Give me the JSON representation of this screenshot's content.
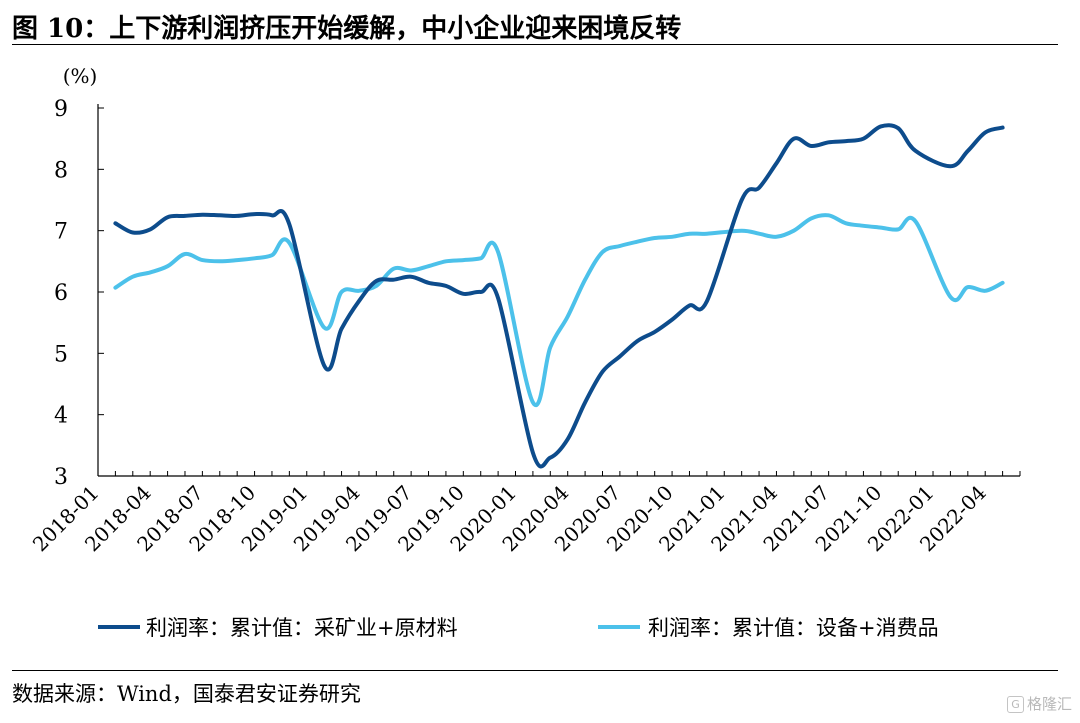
{
  "page": {
    "title": "图 10：上下游利润挤压开始缓解，中小企业迎来困境反转",
    "source": "数据来源：Wind，国泰君安证券研究",
    "watermark": "格隆汇"
  },
  "chart_data": {
    "type": "line",
    "title": "",
    "ylabel": "(%)",
    "xlabel": "",
    "ylim": [
      3,
      9
    ],
    "yticks": [
      3,
      4,
      5,
      6,
      7,
      8,
      9
    ],
    "xticks": [
      "2018-01",
      "2018-04",
      "2018-07",
      "2018-10",
      "2019-01",
      "2019-04",
      "2019-07",
      "2019-10",
      "2020-01",
      "2020-04",
      "2020-07",
      "2020-10",
      "2021-01",
      "2021-04",
      "2021-07",
      "2021-10",
      "2022-01",
      "2022-04"
    ],
    "x": [
      "2018-02",
      "2018-03",
      "2018-04",
      "2018-05",
      "2018-06",
      "2018-07",
      "2018-08",
      "2018-09",
      "2018-10",
      "2018-11",
      "2018-12",
      "2019-02",
      "2019-03",
      "2019-04",
      "2019-05",
      "2019-06",
      "2019-07",
      "2019-08",
      "2019-09",
      "2019-10",
      "2019-11",
      "2019-12",
      "2020-02",
      "2020-03",
      "2020-04",
      "2020-05",
      "2020-06",
      "2020-07",
      "2020-08",
      "2020-09",
      "2020-10",
      "2020-11",
      "2020-12",
      "2021-02",
      "2021-03",
      "2021-04",
      "2021-05",
      "2021-06",
      "2021-07",
      "2021-08",
      "2021-09",
      "2021-10",
      "2021-11",
      "2021-12",
      "2022-02",
      "2022-03",
      "2022-04",
      "2022-05"
    ],
    "grid": false,
    "legend_position": "bottom",
    "series": [
      {
        "name": "利润率：累计值：采矿业+原材料",
        "color": "#0d4c8c",
        "values": [
          7.12,
          6.97,
          7.02,
          7.22,
          7.24,
          7.26,
          7.25,
          7.24,
          7.27,
          7.25,
          7.1,
          4.8,
          5.4,
          5.85,
          6.18,
          6.2,
          6.25,
          6.15,
          6.1,
          5.97,
          6.0,
          5.9,
          3.38,
          3.3,
          3.6,
          4.2,
          4.7,
          4.95,
          5.2,
          5.35,
          5.55,
          5.78,
          5.85,
          7.5,
          7.7,
          8.1,
          8.5,
          8.38,
          8.44,
          8.46,
          8.5,
          8.7,
          8.67,
          8.3,
          8.05,
          8.3,
          8.6,
          8.68
        ]
      },
      {
        "name": "利润率：累计值：设备+消费品",
        "color": "#4cc1ea",
        "values": [
          6.07,
          6.25,
          6.32,
          6.42,
          6.62,
          6.52,
          6.5,
          6.52,
          6.55,
          6.6,
          6.8,
          5.42,
          6.0,
          6.02,
          6.1,
          6.38,
          6.35,
          6.42,
          6.5,
          6.52,
          6.55,
          6.65,
          4.2,
          5.1,
          5.6,
          6.2,
          6.65,
          6.75,
          6.82,
          6.88,
          6.9,
          6.95,
          6.95,
          7.0,
          6.95,
          6.9,
          7.0,
          7.2,
          7.25,
          7.12,
          7.08,
          7.05,
          7.02,
          7.15,
          5.92,
          6.08,
          6.02,
          6.15
        ]
      }
    ]
  }
}
